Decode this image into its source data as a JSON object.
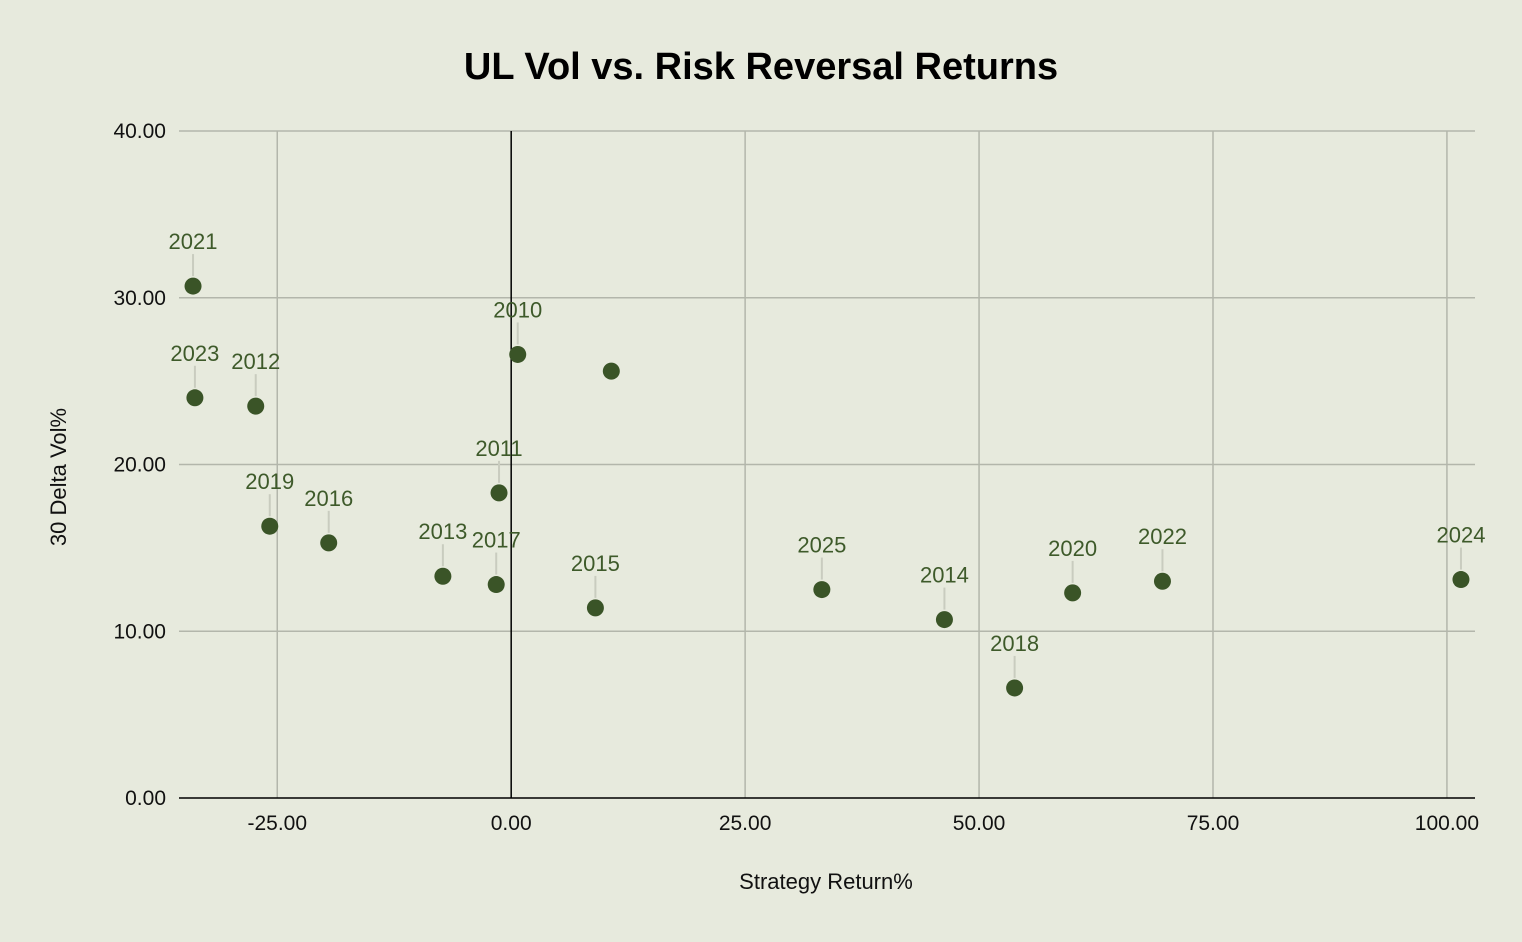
{
  "chart_data": {
    "type": "scatter",
    "title": "UL Vol vs. Risk Reversal Returns",
    "xlabel": "Strategy Return%",
    "ylabel": "30 Delta Vol%",
    "xlim": [
      -35.5,
      103
    ],
    "ylim": [
      0,
      40
    ],
    "x_ticks": [
      -25,
      0,
      25,
      50,
      75,
      100
    ],
    "x_tick_labels": [
      "-25.00",
      "0.00",
      "25.00",
      "50.00",
      "75.00",
      "100.00"
    ],
    "y_ticks": [
      0,
      10,
      20,
      30,
      40
    ],
    "y_tick_labels": [
      "0.00",
      "10.00",
      "20.00",
      "30.00",
      "40.00"
    ],
    "grid": true,
    "legend": "none",
    "colors": {
      "background": "#e7eadd",
      "point": "#3a5427",
      "point_label": "#3e5a2a",
      "gridline": "#b3b6ab",
      "leader_line": "#c9ccbf",
      "zero_line": "#000000"
    },
    "points": [
      {
        "label": "2021",
        "x": -34.0,
        "y": 30.7
      },
      {
        "label": "2023",
        "x": -33.8,
        "y": 24.0
      },
      {
        "label": "2012",
        "x": -27.3,
        "y": 23.5
      },
      {
        "label": "2019",
        "x": -25.8,
        "y": 16.3
      },
      {
        "label": "2016",
        "x": -19.5,
        "y": 15.3
      },
      {
        "label": "2013",
        "x": -7.3,
        "y": 13.3
      },
      {
        "label": "2017",
        "x": -1.6,
        "y": 12.8
      },
      {
        "label": "2011",
        "x": -1.3,
        "y": 18.3
      },
      {
        "label": "2010",
        "x": 0.7,
        "y": 26.6
      },
      {
        "label": "",
        "x": 10.7,
        "y": 25.6
      },
      {
        "label": "2015",
        "x": 9.0,
        "y": 11.4
      },
      {
        "label": "2025",
        "x": 33.2,
        "y": 12.5
      },
      {
        "label": "2014",
        "x": 46.3,
        "y": 10.7
      },
      {
        "label": "2018",
        "x": 53.8,
        "y": 6.6
      },
      {
        "label": "2020",
        "x": 60.0,
        "y": 12.3
      },
      {
        "label": "2022",
        "x": 69.6,
        "y": 13.0
      },
      {
        "label": "2024",
        "x": 101.5,
        "y": 13.1
      }
    ]
  }
}
